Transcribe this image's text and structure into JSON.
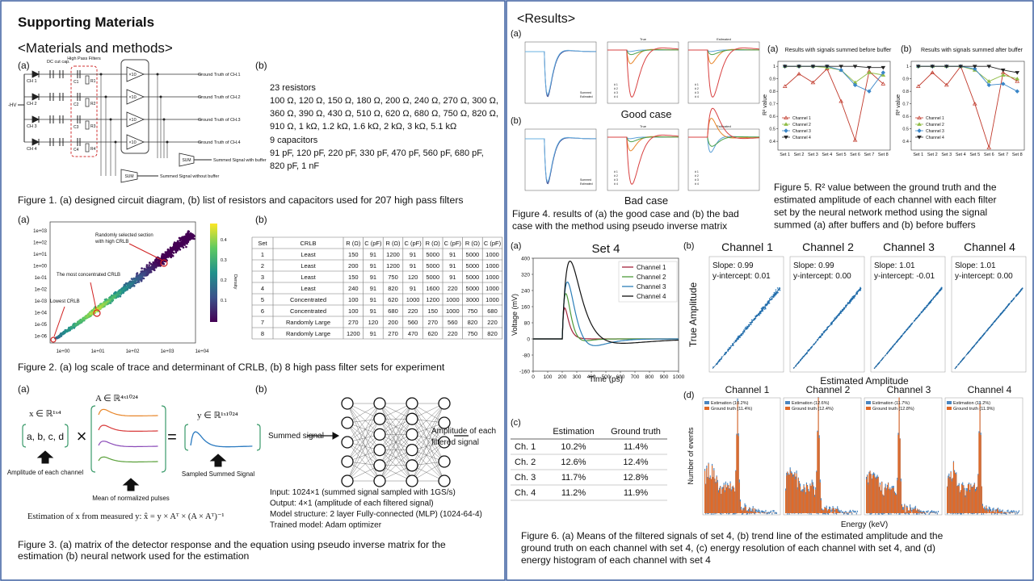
{
  "title": "Supporting Materials",
  "methods": {
    "heading": "<Materials and methods>",
    "fig1": {
      "label_a": "(a)",
      "label_b": "(b)",
      "circuit": {
        "hv": "-HV",
        "dc_cut": "DC cut cap.",
        "hpf": "High Pass Filters",
        "channels": [
          "CH 1",
          "CH 2",
          "CH 3",
          "CH 4"
        ],
        "capacitors": [
          "C1",
          "C2",
          "C3",
          "C4"
        ],
        "resistors": [
          "R1",
          "R2",
          "R3",
          "R4"
        ],
        "gain": "×10",
        "outputs": [
          "Ground Truth of CH.1",
          "Ground Truth of CH.2",
          "Ground Truth of CH.3",
          "Ground Truth of CH.4"
        ],
        "sum": "SUM",
        "with_buffer": "Summed Signal with buffer",
        "without_buffer": "Summed Signal without buffer"
      },
      "resistors_title": "23 resistors",
      "resistors": [
        "100 Ω, 120 Ω, 150 Ω, 180 Ω, 200 Ω, 240 Ω, 270 Ω, 300 Ω,",
        "360 Ω, 390 Ω, 430 Ω, 510 Ω, 620 Ω, 680 Ω, 750 Ω, 820 Ω,",
        "910 Ω, 1 kΩ, 1.2 kΩ, 1.6 kΩ, 2 kΩ, 3 kΩ, 5.1 kΩ"
      ],
      "capacitors_title": "9 capacitors",
      "capacitors": [
        "91 pF, 120 pF, 220 pF, 330 pF, 470 pF, 560 pF, 680 pF,",
        "820 pF, 1 nF"
      ],
      "caption": "Figure 1. (a) designed circuit diagram, (b) list of resistors and capacitors used for 207 high pass filters"
    },
    "fig2": {
      "label_a": "(a)",
      "label_b": "(b)",
      "scatter": {
        "yticks": [
          "1e+03",
          "1e+02",
          "1e+01",
          "1e+00",
          "1e-01",
          "1e-02",
          "1e-03",
          "1e-04",
          "1e-05",
          "1e-06"
        ],
        "xticks": [
          "1e+00",
          "1e+01",
          "1e+02",
          "1e+03",
          "1e+04"
        ],
        "colorbar_ticks": [
          "0.4",
          "0.3",
          "0.2",
          "0.1"
        ],
        "colorbar_label": "Density",
        "random": [
          "Randomly selected section",
          "with high CRLB"
        ],
        "concentrated": "The most concentrated CRLB",
        "lowest": "Lowest CRLB"
      },
      "table": {
        "header": [
          "Set",
          "CRLB",
          "R (Ω)",
          "C (pF)",
          "R (Ω)",
          "C (pF)",
          "R (Ω)",
          "C (pF)",
          "R (Ω)",
          "C (pF)"
        ],
        "rows": [
          [
            1,
            "Least",
            150,
            91,
            1200,
            91,
            5000,
            91,
            5000,
            1000
          ],
          [
            2,
            "Least",
            200,
            91,
            1200,
            91,
            5000,
            91,
            5000,
            1000
          ],
          [
            3,
            "Least",
            150,
            91,
            750,
            120,
            5000,
            91,
            5000,
            1000
          ],
          [
            4,
            "Least",
            240,
            91,
            820,
            91,
            1600,
            220,
            5000,
            1000
          ],
          [
            5,
            "Concentrated",
            100,
            91,
            620,
            1000,
            1200,
            1000,
            3000,
            1000
          ],
          [
            6,
            "Concentrated",
            100,
            91,
            680,
            220,
            150,
            1000,
            750,
            680
          ],
          [
            7,
            "Randomly Large",
            270,
            120,
            200,
            560,
            270,
            560,
            820,
            220
          ],
          [
            8,
            "Randomly Large",
            1200,
            91,
            270,
            470,
            620,
            220,
            750,
            820
          ]
        ]
      },
      "caption": "Figure 2. (a) log scale of trace and determinant of CRLB, (b) 8 high pass filter sets for experiment"
    },
    "fig3": {
      "label_a": "(a)",
      "label_b": "(b)",
      "x_dim": "x ∈ ℝ¹ˣ⁴",
      "a_dim": "A ∈ ℝ⁴ˣ¹⁰²⁴",
      "y_dim": "y ∈ ℝ¹ˣ¹⁰²⁴",
      "vector": "a, b, c, d",
      "times": "×",
      "equals": "=",
      "amplitude": "Amplitude of each channel",
      "pulses": "Mean of normalized pulses",
      "sampled": "Sampled Summed Signal",
      "estimation": "Estimation of x from measured y:  x̂ = y × Aᵀ × (A × Aᵀ)⁻¹",
      "nn_input": "Summed signal",
      "nn_output": [
        "Amplitude of each",
        "filtered signal"
      ],
      "details": [
        "Input: 1024×1 (summed signal sampled with 1GS/s)",
        "Output: 4×1 (amplitude of each filtered signal)",
        "Model structure: 2 layer Fully-connected (MLP)   (1024-64-4)",
        "Trained model: Adam optimizer"
      ],
      "caption": [
        "Figure 3. (a) matrix of the detector response and the equation using pseudo inverse matrix for the",
        "estimation (b) neural network used for the estimation"
      ]
    }
  },
  "results": {
    "heading": "<Results>",
    "fig4": {
      "label_a": "(a)",
      "label_b": "(b)",
      "plot_titles": [
        "True",
        "Estimated"
      ],
      "legend_sum": [
        "Summed",
        "Estimated"
      ],
      "legend_ch": [
        "# 1",
        "# 2",
        "# 3",
        "# 4"
      ],
      "good": "Good case",
      "bad": "Bad case",
      "caption": [
        "Figure 4. results of (a) the good case and (b) the bad",
        "case with the method using pseudo inverse matrix"
      ]
    },
    "fig5": {
      "labels": [
        "(a)",
        "(b)"
      ],
      "charts": [
        {
          "type": "line",
          "title": "Results with signals summed before buffer",
          "ylabel": "R² value",
          "categories": [
            "Set 1",
            "Set 2",
            "Set 3",
            "Set 4",
            "Set 5",
            "Set 6",
            "Set 7",
            "Set 8"
          ],
          "ylim": [
            0.33,
            1.04
          ],
          "yticks": [
            1,
            0.9,
            0.8,
            0.7,
            0.6,
            0.5,
            0.4
          ],
          "series": [
            {
              "name": "Channel 1",
              "color": "#c0392b",
              "marker": "triangle",
              "values": [
                0.84,
                0.94,
                0.87,
                0.98,
                0.72,
                0.41,
                0.96,
                0.86
              ]
            },
            {
              "name": "Channel 2",
              "color": "#8fbc45",
              "marker": "triangle",
              "values": [
                1,
                1,
                1,
                0.99,
                0.97,
                0.87,
                0.95,
                0.93
              ]
            },
            {
              "name": "Channel 3",
              "color": "#3a86c8",
              "marker": "diamond",
              "values": [
                1,
                1,
                1,
                1,
                0.97,
                0.85,
                0.8,
                0.95
              ]
            },
            {
              "name": "Channel 4",
              "color": "#222222",
              "marker": "down",
              "values": [
                1,
                1,
                1,
                1,
                1,
                1,
                0.99,
                0.99
              ]
            }
          ]
        },
        {
          "type": "line",
          "title": "Results with signals summed after buffer",
          "ylabel": "R² value",
          "categories": [
            "Set 1",
            "Set 2",
            "Set 3",
            "Set 4",
            "Set 5",
            "Set 6",
            "Set 7",
            "Set 8"
          ],
          "ylim": [
            0.33,
            1.04
          ],
          "yticks": [
            1,
            0.9,
            0.8,
            0.7,
            0.6,
            0.5,
            0.4
          ],
          "series": [
            {
              "name": "Channel 1",
              "color": "#c0392b",
              "marker": "triangle",
              "values": [
                0.84,
                0.95,
                0.85,
                1,
                0.7,
                0.35,
                0.95,
                0.88
              ]
            },
            {
              "name": "Channel 2",
              "color": "#8fbc45",
              "marker": "triangle",
              "values": [
                1,
                1,
                1,
                1,
                0.97,
                0.88,
                0.93,
                0.9
              ]
            },
            {
              "name": "Channel 3",
              "color": "#3a86c8",
              "marker": "diamond",
              "values": [
                1,
                1,
                1,
                1,
                0.98,
                0.85,
                0.86,
                0.8
              ]
            },
            {
              "name": "Channel 4",
              "color": "#222222",
              "marker": "down",
              "values": [
                1,
                1,
                1,
                1,
                1,
                1,
                0.97,
                0.95
              ]
            }
          ]
        }
      ],
      "caption": [
        "Figure 5. R² value between the ground truth and the",
        "estimated amplitude of each channel with each filter",
        "set by the neural network method using the signal",
        "summed (a) after buffers and (b) before buffers"
      ]
    },
    "fig6": {
      "label_a": "(a)",
      "label_b": "(b)",
      "label_c": "(c)",
      "label_d": "(d)",
      "set4": {
        "title": "Set 4",
        "xlabel": "Time (ps)",
        "ylabel": "Voltage (mV)",
        "xlim": [
          0,
          1000
        ],
        "ylim": [
          -160,
          400
        ],
        "xticks": [
          0,
          100,
          200,
          300,
          400,
          500,
          600,
          700,
          800,
          900,
          1000
        ],
        "yticks": [
          400,
          320,
          240,
          160,
          80,
          0,
          -80,
          -160
        ],
        "series": [
          {
            "name": "Channel 1",
            "color": "#a3243b"
          },
          {
            "name": "Channel 2",
            "color": "#4e9a3c"
          },
          {
            "name": "Channel 3",
            "color": "#2c7fb8"
          },
          {
            "name": "Channel 4",
            "color": "#111111"
          }
        ]
      },
      "channels": [
        "Channel 1",
        "Channel 2",
        "Channel 3",
        "Channel 4"
      ],
      "fits": [
        [
          "Slope: 0.99",
          "y-intercept: 0.01"
        ],
        [
          "Slope: 0.99",
          "y-intercept: 0.00"
        ],
        [
          "Slope: 1.01",
          "y-intercept: -0.01"
        ],
        [
          "Slope: 1.01",
          "y-intercept: 0.00"
        ]
      ],
      "true_amp": "True Amplitude",
      "est_amp": "Estimated Amplitude",
      "table": {
        "header": [
          "Estimation",
          "Ground truth"
        ],
        "rows": [
          [
            "Ch. 1",
            "10.2%",
            "11.4%"
          ],
          [
            "Ch. 2",
            "12.6%",
            "12.4%"
          ],
          [
            "Ch. 3",
            "11.7%",
            "12.8%"
          ],
          [
            "Ch. 4",
            "11.2%",
            "11.9%"
          ]
        ]
      },
      "hist_legends": [
        [
          "Estimation (10.2%)",
          "Ground truth (11.4%)"
        ],
        [
          "Estimation (12.6%)",
          "Ground truth (12.4%)"
        ],
        [
          "Estimation (11.7%)",
          "Ground truth (12.8%)"
        ],
        [
          "Estimation (11.2%)",
          "Ground truth (11.9%)"
        ]
      ],
      "events": "Number of events",
      "energy": "Energy (keV)",
      "caption": [
        "Figure 6. (a) Means of the filtered signals of set 4, (b) trend line of the estimated amplitude and the",
        "ground truth on each channel with set 4, (c) energy resolution of each channel with set 4, and (d)",
        "energy histogram of each channel with set 4"
      ]
    }
  }
}
